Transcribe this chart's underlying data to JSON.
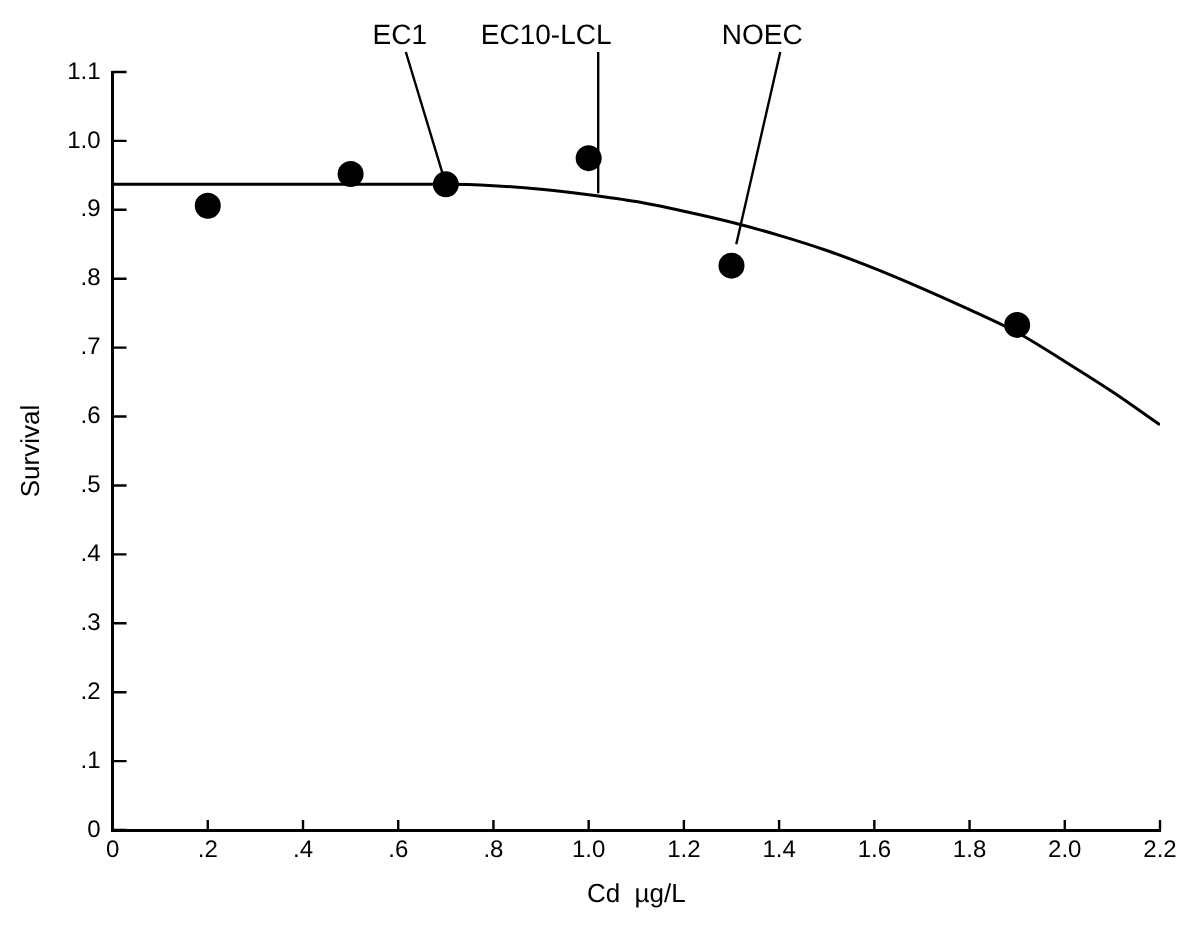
{
  "chart_data": {
    "type": "scatter",
    "xlabel": "Cd  µg/L",
    "ylabel": "Survival",
    "xlim": [
      0,
      2.2
    ],
    "ylim": [
      0,
      1.1
    ],
    "xticks": [
      0,
      {
        "value": 0.2,
        "label": ".2"
      },
      {
        "value": 0.4,
        "label": ".4"
      },
      {
        "value": 0.6,
        "label": ".6"
      },
      {
        "value": 0.8,
        "label": ".8"
      },
      {
        "value": 1.0,
        "label": "1.0"
      },
      1.2,
      1.4,
      1.6,
      1.8,
      {
        "value": 2.0,
        "label": "2.0"
      },
      2.2
    ],
    "yticks": [
      0,
      {
        "value": 0.1,
        "label": ".1"
      },
      {
        "value": 0.2,
        "label": ".2"
      },
      {
        "value": 0.3,
        "label": ".3"
      },
      {
        "value": 0.4,
        "label": ".4"
      },
      {
        "value": 0.5,
        "label": ".5"
      },
      {
        "value": 0.6,
        "label": ".6"
      },
      {
        "value": 0.7,
        "label": ".7"
      },
      {
        "value": 0.8,
        "label": ".8"
      },
      {
        "value": 0.9,
        "label": ".9"
      },
      {
        "value": 1.0,
        "label": "1.0"
      },
      1.1
    ],
    "grid": false,
    "legend": false,
    "marker": "circle",
    "series": [
      {
        "color": "#000000",
        "x": [
          0.2,
          0.5,
          0.7,
          1.0,
          1.3,
          1.9
        ],
        "values": [
          0.906,
          0.952,
          0.937,
          0.975,
          0.819,
          0.733
        ]
      },
      {
        "type": "line",
        "color": "#000000",
        "marker": "none",
        "x": [
          0,
          0.7,
          0.8,
          0.9,
          1.0,
          1.1,
          1.2,
          1.3,
          1.4,
          1.5,
          1.6,
          1.7,
          1.8,
          1.9,
          2.0,
          2.1,
          2.2
        ],
        "values": [
          0.937,
          0.937,
          0.935,
          0.93,
          0.922,
          0.912,
          0.898,
          0.882,
          0.863,
          0.841,
          0.815,
          0.786,
          0.755,
          0.722,
          0.68,
          0.636,
          0.588
        ]
      }
    ],
    "annotations": [
      {
        "text": "EC1",
        "x": 0.7,
        "y": 0.937
      },
      {
        "text": "EC10-LCL",
        "x": 1.02,
        "y": 0.924
      },
      {
        "text": "NOEC",
        "x": 1.31,
        "y": 0.85
      }
    ]
  }
}
